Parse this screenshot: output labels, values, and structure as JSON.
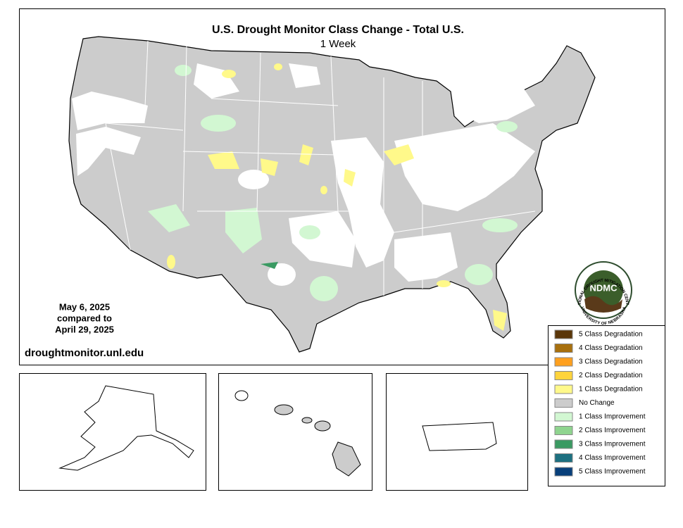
{
  "header": {
    "title": "U.S. Drought Monitor Class Change - Total U.S.",
    "subtitle": "1 Week"
  },
  "date_note": {
    "lines": [
      "May 6, 2025",
      "compared to",
      "April 29, 2025"
    ]
  },
  "source_url": "droughtmonitor.unl.edu",
  "logo": {
    "acronym": "NDMC",
    "ring_top": "NATIONAL DROUGHT MITIGATION CENTER",
    "ring_bottom": "UNIVERSITY OF NEBRASKA"
  },
  "legend": {
    "items": [
      {
        "label": "5 Class Degradation",
        "color": "#5a3608"
      },
      {
        "label": "4 Class Degradation",
        "color": "#a8700e"
      },
      {
        "label": "3 Class Degradation",
        "color": "#ffa01e"
      },
      {
        "label": "2 Class Degradation",
        "color": "#ffd43c"
      },
      {
        "label": "1 Class Degradation",
        "color": "#fff98a"
      },
      {
        "label": "No Change",
        "color": "#cccccc"
      },
      {
        "label": "1 Class Improvement",
        "color": "#d2f7d2"
      },
      {
        "label": "2 Class Improvement",
        "color": "#8fd48f"
      },
      {
        "label": "3 Class Improvement",
        "color": "#3a9a62"
      },
      {
        "label": "4 Class Improvement",
        "color": "#1d7080"
      },
      {
        "label": "5 Class Improvement",
        "color": "#083f7a"
      }
    ]
  }
}
